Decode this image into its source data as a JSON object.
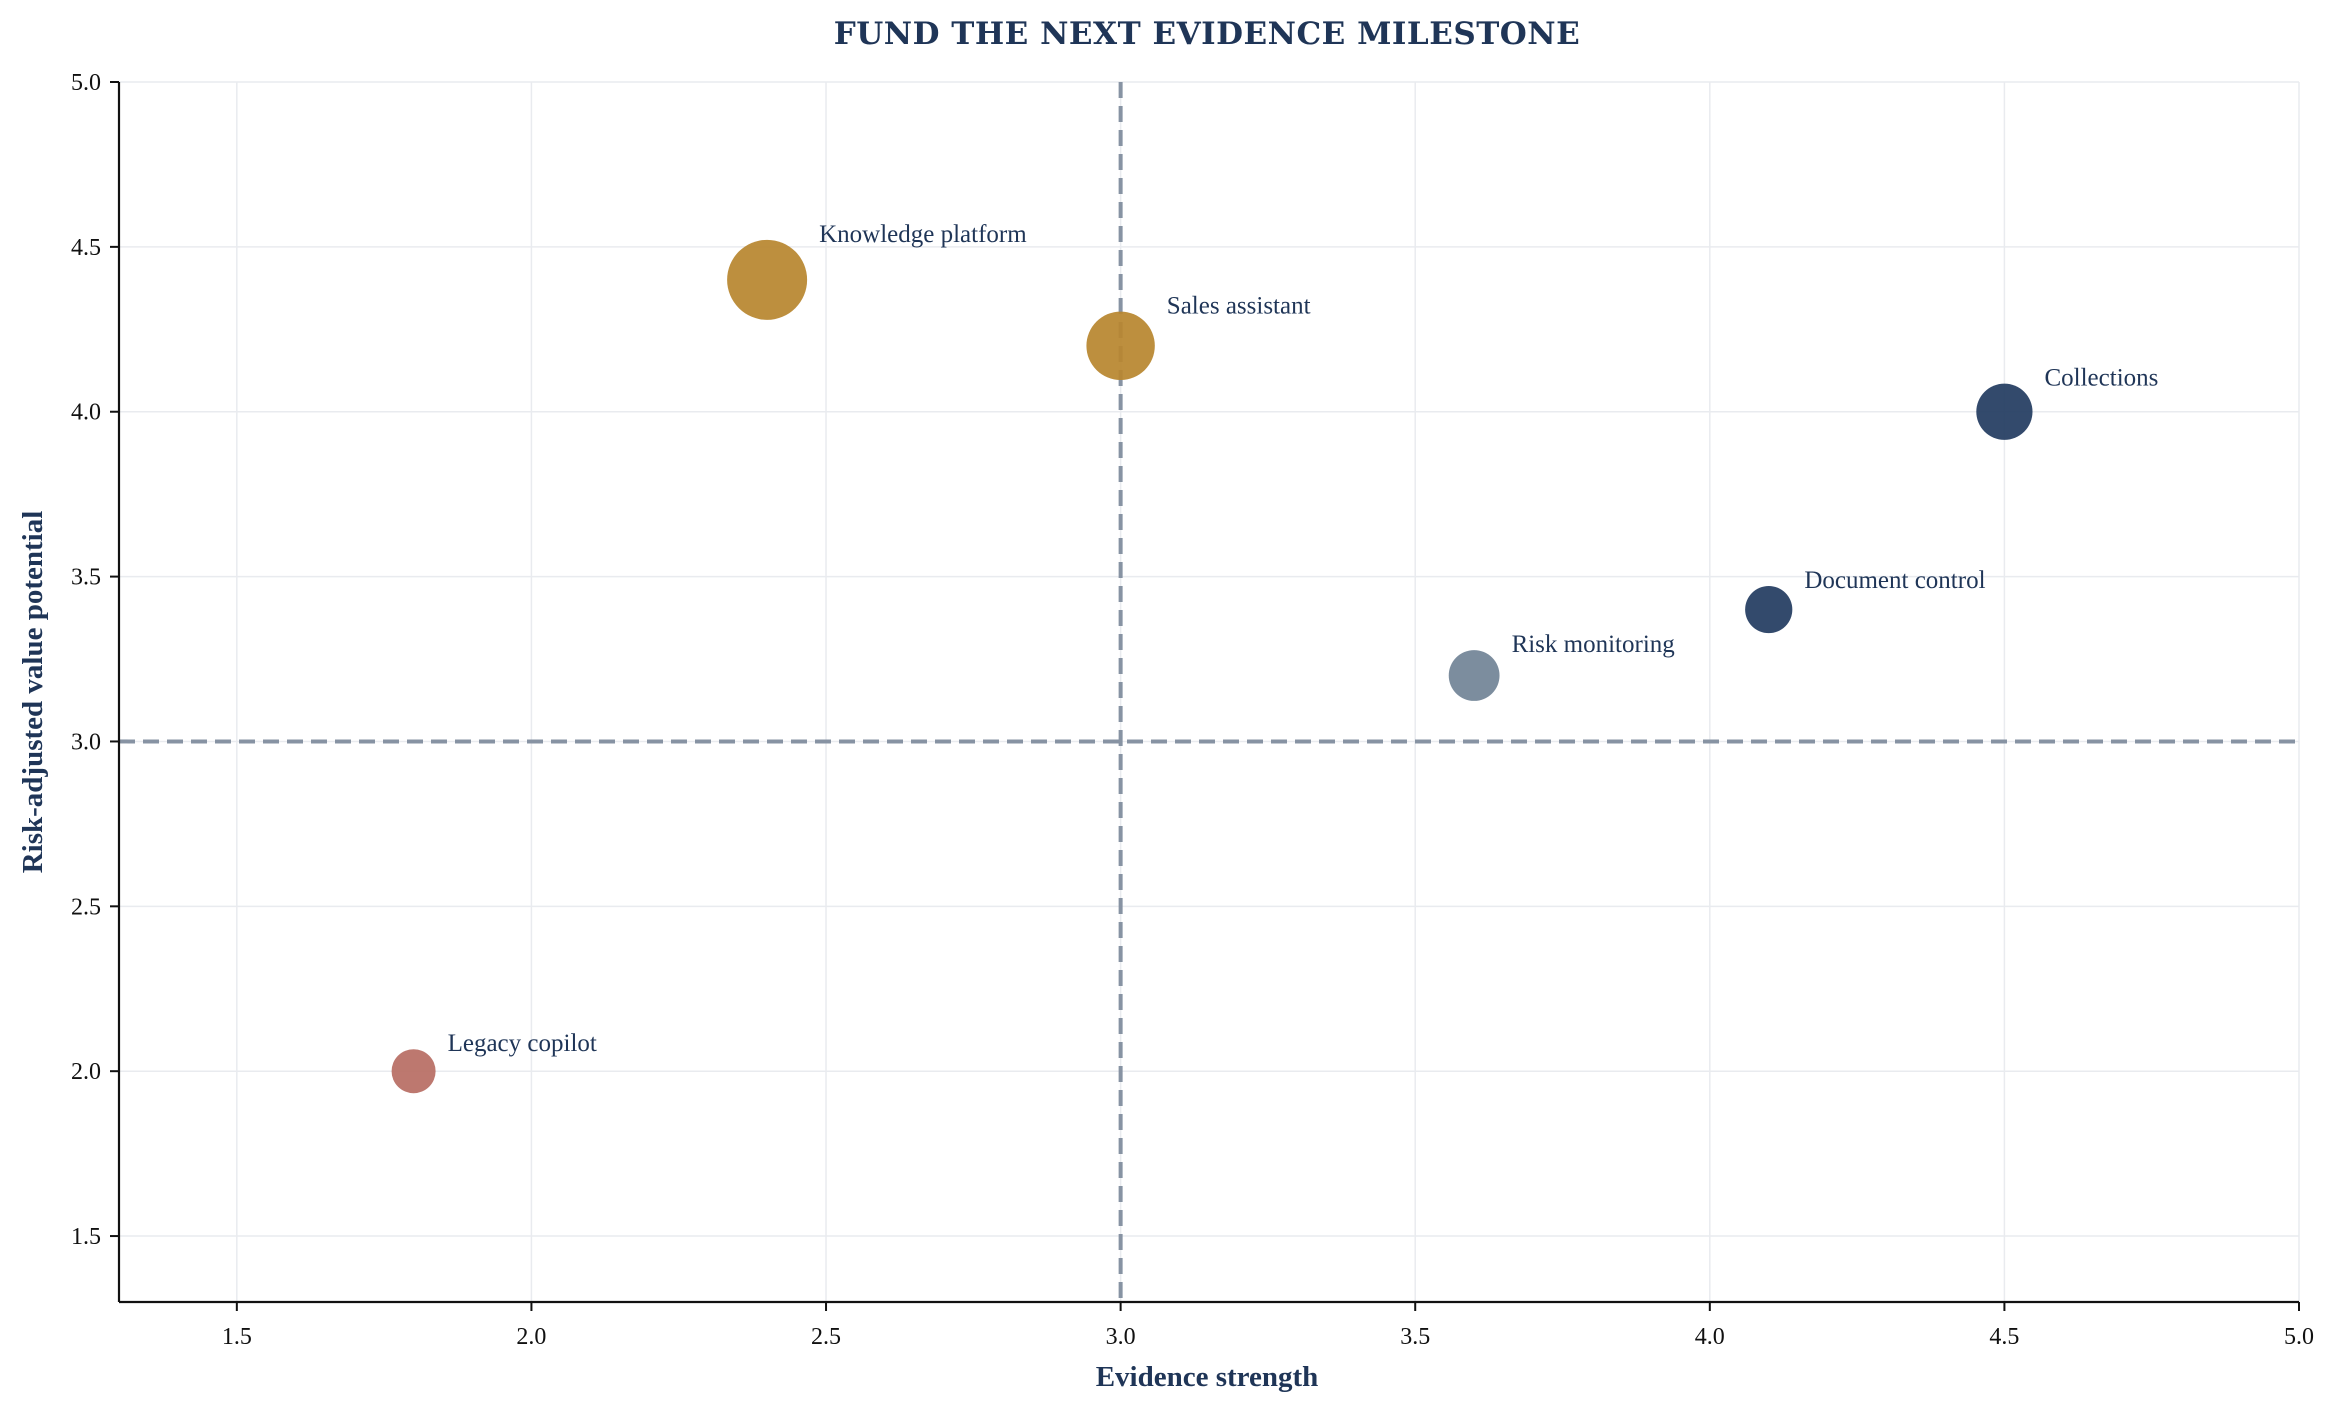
{
  "chart_data": {
    "type": "scatter",
    "title": "FUND THE NEXT EVIDENCE MILESTONE",
    "xlabel": "Evidence strength",
    "ylabel": "Risk-adjusted value potential",
    "xlim": [
      1.3,
      5.0
    ],
    "ylim": [
      1.3,
      5.0
    ],
    "x_ticks": [
      "1.5",
      "2.0",
      "2.5",
      "3.0",
      "3.5",
      "4.0",
      "4.5",
      "5.0"
    ],
    "y_ticks": [
      "1.5",
      "2.0",
      "2.5",
      "3.0",
      "3.5",
      "4.0",
      "4.5",
      "5.0"
    ],
    "grid": true,
    "reference_lines": {
      "x": 3.0,
      "y": 3.0
    },
    "points": [
      {
        "label": "Knowledge platform",
        "x": 2.4,
        "y": 4.4,
        "size": 1.0,
        "color": "#b8862f"
      },
      {
        "label": "Sales assistant",
        "x": 3.0,
        "y": 4.2,
        "size": 0.78,
        "color": "#b8862f"
      },
      {
        "label": "Collections",
        "x": 4.5,
        "y": 4.0,
        "size": 0.55,
        "color": "#243c61"
      },
      {
        "label": "Document control",
        "x": 4.1,
        "y": 3.4,
        "size": 0.38,
        "color": "#243c61"
      },
      {
        "label": "Risk monitoring",
        "x": 3.6,
        "y": 3.2,
        "size": 0.45,
        "color": "#728497"
      },
      {
        "label": "Legacy copilot",
        "x": 1.8,
        "y": 2.0,
        "size": 0.32,
        "color": "#b86e64"
      }
    ]
  }
}
